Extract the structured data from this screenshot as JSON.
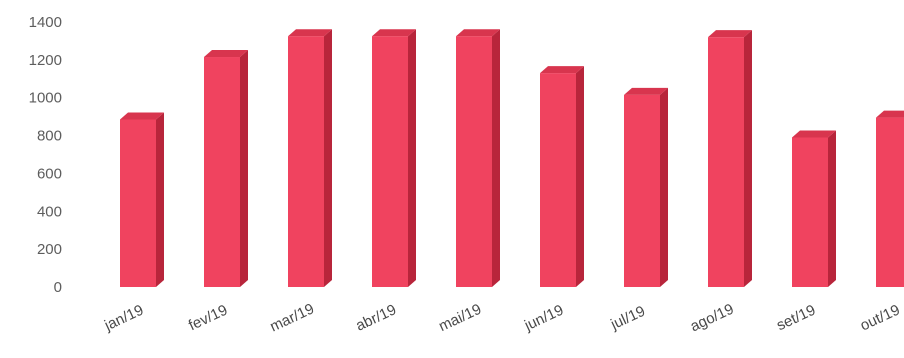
{
  "chart_data": {
    "type": "bar",
    "categories": [
      "jan/19",
      "fev/19",
      "mar/19",
      "abr/19",
      "mai/19",
      "jun/19",
      "jul/19",
      "ago/19",
      "set/19",
      "out/19"
    ],
    "values": [
      885,
      1215,
      1325,
      1325,
      1325,
      1130,
      1015,
      1320,
      790,
      895
    ],
    "ylim": [
      0,
      1400
    ],
    "yticks": [
      0,
      200,
      400,
      600,
      800,
      1000,
      1200,
      1400
    ],
    "grid": false,
    "legend": "none",
    "bar_style": "3d",
    "colors": {
      "bar_front": "#f0435f",
      "bar_side": "#b8253b",
      "bar_top": "#d8354e",
      "axis_text": "#5d5d5d"
    }
  }
}
